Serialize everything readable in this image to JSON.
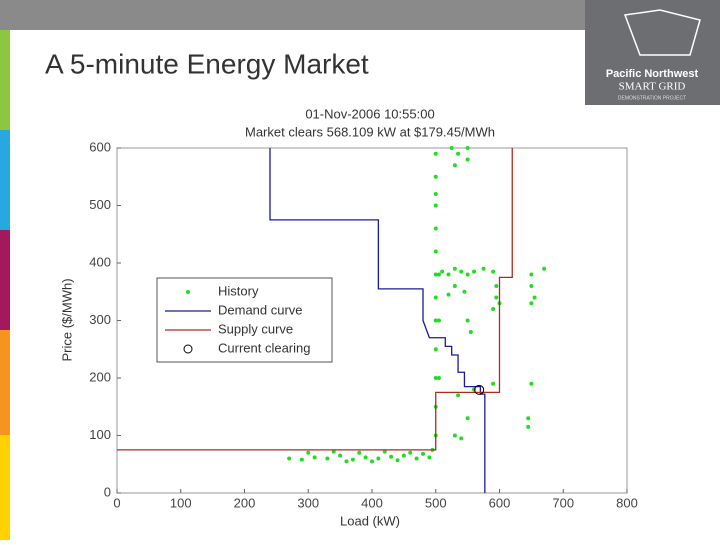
{
  "header": {
    "title": "A 5-minute Energy Market",
    "logo": [
      "Pacific Northwest",
      "SMART GRID",
      "DEMONSTRATION PROJECT"
    ]
  },
  "chart_data": {
    "type": "scatter",
    "title": "01-Nov-2006 10:55:00",
    "subtitle": "Market clears 568.109 kW at $179.45/MWh",
    "x_label": "Load (kW)",
    "y_label": "Price ($/MWh)",
    "xlim": [
      0,
      800
    ],
    "ylim": [
      0,
      600
    ],
    "xticks": [
      0,
      100,
      200,
      300,
      400,
      500,
      600,
      700,
      800
    ],
    "yticks": [
      0,
      100,
      200,
      300,
      400,
      500,
      600
    ],
    "legend": "center left",
    "series": [
      {
        "name": "History",
        "mode": "markers",
        "color": "#22dd22",
        "x": [
          270,
          290,
          310,
          330,
          350,
          370,
          390,
          410,
          430,
          450,
          470,
          490,
          300,
          340,
          380,
          420,
          460,
          480,
          360,
          400,
          440,
          495,
          500,
          500,
          500,
          500,
          500,
          500,
          500,
          500,
          500,
          500,
          500,
          505,
          505,
          505,
          510,
          520,
          530,
          540,
          550,
          560,
          545,
          550,
          555,
          530,
          520,
          525,
          535,
          550,
          530,
          550,
          500,
          500,
          575,
          590,
          595,
          595,
          600,
          590,
          550,
          540,
          530,
          535,
          560,
          590,
          650,
          650,
          655,
          650,
          670,
          650,
          645,
          645
        ],
        "values": [
          60,
          58,
          62,
          60,
          65,
          58,
          62,
          60,
          63,
          65,
          60,
          62,
          70,
          72,
          70,
          72,
          70,
          68,
          55,
          55,
          57,
          75,
          100,
          150,
          200,
          250,
          300,
          340,
          380,
          420,
          460,
          500,
          550,
          380,
          300,
          200,
          385,
          380,
          390,
          385,
          380,
          385,
          350,
          300,
          280,
          360,
          345,
          600,
          590,
          600,
          570,
          580,
          520,
          590,
          390,
          385,
          360,
          340,
          330,
          320,
          130,
          95,
          100,
          170,
          180,
          190,
          380,
          360,
          340,
          330,
          390,
          190,
          130,
          115
        ]
      },
      {
        "name": "Demand curve",
        "mode": "line",
        "color": "#1a1aa0",
        "x": [
          240,
          240,
          410,
          410,
          480,
          480,
          485,
          490,
          515,
          515,
          525,
          525,
          535,
          535,
          545,
          545,
          570,
          570,
          577,
          577
        ],
        "values": [
          600,
          475,
          475,
          355,
          355,
          300,
          285,
          270,
          270,
          255,
          255,
          240,
          240,
          210,
          210,
          185,
          185,
          172,
          172,
          0
        ]
      },
      {
        "name": "Supply curve",
        "mode": "line",
        "color": "#b22a1e",
        "x": [
          0,
          500,
          500,
          600,
          600,
          620,
          620
        ],
        "values": [
          75,
          75,
          175,
          175,
          375,
          375,
          600
        ]
      },
      {
        "name": "Current clearing",
        "mode": "circle",
        "color": "#000000",
        "x": [
          568.109
        ],
        "values": [
          179.45
        ]
      }
    ]
  }
}
